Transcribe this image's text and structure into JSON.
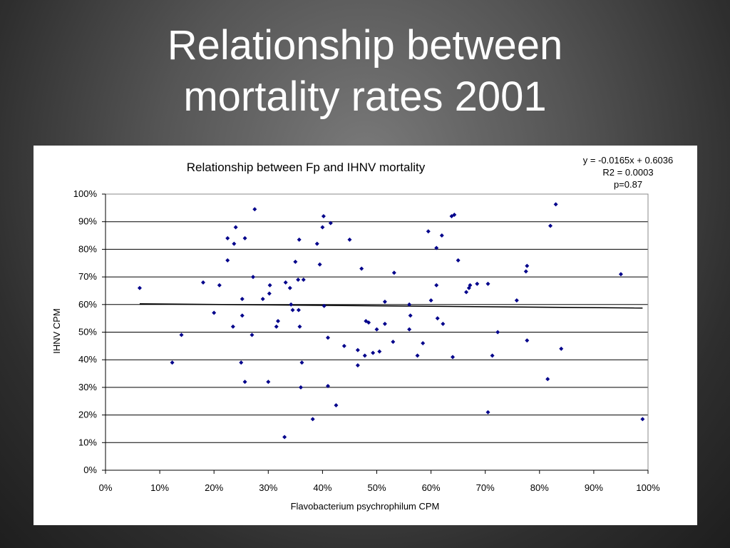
{
  "slide": {
    "title_line1": "Relationship between",
    "title_line2": "mortality rates 2001"
  },
  "chart_data": {
    "type": "scatter",
    "title": "Relationship between Fp and IHNV mortality",
    "xlabel": "Flavobacterium psychrophilum CPM",
    "ylabel": "IHNV CPM",
    "xlim": [
      0,
      1
    ],
    "ylim": [
      0,
      1
    ],
    "x_ticks": [
      "0%",
      "10%",
      "20%",
      "30%",
      "40%",
      "50%",
      "60%",
      "70%",
      "80%",
      "90%",
      "100%"
    ],
    "y_ticks": [
      "0%",
      "10%",
      "20%",
      "30%",
      "40%",
      "50%",
      "60%",
      "70%",
      "80%",
      "90%",
      "100%"
    ],
    "grid": "horizontal",
    "marker_color": "#00008b",
    "trendline": {
      "slope": -0.0165,
      "intercept": 0.6036,
      "color": "#000000"
    },
    "annotation": [
      "y = -0.0165x + 0.6036",
      "R2 = 0.0003",
      "p=0.87"
    ],
    "points": [
      [
        0.063,
        0.66
      ],
      [
        0.123,
        0.39
      ],
      [
        0.14,
        0.49
      ],
      [
        0.18,
        0.68
      ],
      [
        0.2,
        0.57
      ],
      [
        0.21,
        0.67
      ],
      [
        0.225,
        0.84
      ],
      [
        0.225,
        0.76
      ],
      [
        0.235,
        0.52
      ],
      [
        0.237,
        0.82
      ],
      [
        0.24,
        0.88
      ],
      [
        0.25,
        0.39
      ],
      [
        0.252,
        0.62
      ],
      [
        0.252,
        0.56
      ],
      [
        0.257,
        0.84
      ],
      [
        0.257,
        0.32
      ],
      [
        0.27,
        0.49
      ],
      [
        0.272,
        0.7
      ],
      [
        0.275,
        0.945
      ],
      [
        0.29,
        0.62
      ],
      [
        0.3,
        0.32
      ],
      [
        0.302,
        0.64
      ],
      [
        0.303,
        0.67
      ],
      [
        0.315,
        0.52
      ],
      [
        0.318,
        0.54
      ],
      [
        0.33,
        0.12
      ],
      [
        0.332,
        0.68
      ],
      [
        0.34,
        0.66
      ],
      [
        0.342,
        0.6
      ],
      [
        0.345,
        0.58
      ],
      [
        0.35,
        0.755
      ],
      [
        0.355,
        0.69
      ],
      [
        0.356,
        0.58
      ],
      [
        0.357,
        0.835
      ],
      [
        0.358,
        0.52
      ],
      [
        0.36,
        0.3
      ],
      [
        0.362,
        0.39
      ],
      [
        0.365,
        0.69
      ],
      [
        0.382,
        0.185
      ],
      [
        0.39,
        0.82
      ],
      [
        0.395,
        0.745
      ],
      [
        0.4,
        0.88
      ],
      [
        0.402,
        0.92
      ],
      [
        0.403,
        0.595
      ],
      [
        0.41,
        0.48
      ],
      [
        0.41,
        0.305
      ],
      [
        0.415,
        0.895
      ],
      [
        0.425,
        0.235
      ],
      [
        0.44,
        0.45
      ],
      [
        0.45,
        0.835
      ],
      [
        0.465,
        0.435
      ],
      [
        0.465,
        0.38
      ],
      [
        0.472,
        0.73
      ],
      [
        0.478,
        0.415
      ],
      [
        0.48,
        0.54
      ],
      [
        0.485,
        0.535
      ],
      [
        0.493,
        0.425
      ],
      [
        0.5,
        0.51
      ],
      [
        0.505,
        0.43
      ],
      [
        0.515,
        0.53
      ],
      [
        0.515,
        0.61
      ],
      [
        0.53,
        0.465
      ],
      [
        0.532,
        0.715
      ],
      [
        0.56,
        0.6
      ],
      [
        0.56,
        0.51
      ],
      [
        0.562,
        0.56
      ],
      [
        0.575,
        0.415
      ],
      [
        0.585,
        0.46
      ],
      [
        0.595,
        0.865
      ],
      [
        0.6,
        0.615
      ],
      [
        0.61,
        0.805
      ],
      [
        0.61,
        0.67
      ],
      [
        0.612,
        0.55
      ],
      [
        0.62,
        0.85
      ],
      [
        0.622,
        0.53
      ],
      [
        0.638,
        0.92
      ],
      [
        0.64,
        0.41
      ],
      [
        0.643,
        0.925
      ],
      [
        0.65,
        0.76
      ],
      [
        0.665,
        0.645
      ],
      [
        0.67,
        0.66
      ],
      [
        0.672,
        0.67
      ],
      [
        0.685,
        0.675
      ],
      [
        0.705,
        0.675
      ],
      [
        0.705,
        0.21
      ],
      [
        0.713,
        0.415
      ],
      [
        0.723,
        0.5
      ],
      [
        0.758,
        0.615
      ],
      [
        0.775,
        0.72
      ],
      [
        0.777,
        0.74
      ],
      [
        0.777,
        0.47
      ],
      [
        0.815,
        0.33
      ],
      [
        0.82,
        0.885
      ],
      [
        0.83,
        0.963
      ],
      [
        0.84,
        0.44
      ],
      [
        0.95,
        0.71
      ],
      [
        0.99,
        0.185
      ]
    ]
  }
}
